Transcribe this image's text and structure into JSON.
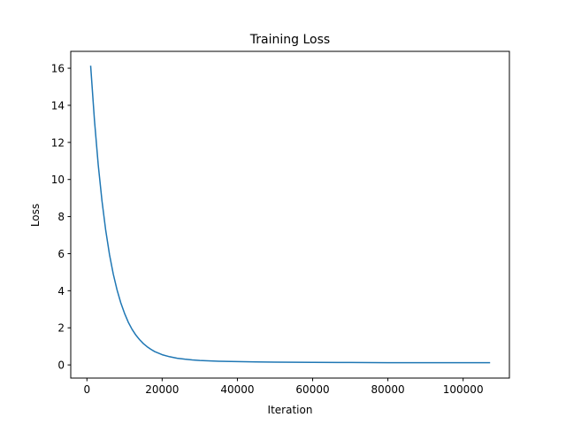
{
  "chart_data": {
    "type": "line",
    "title": "Training Loss",
    "xlabel": "Iteration",
    "ylabel": "Loss",
    "xlim": [
      -4300,
      112300
    ],
    "ylim": [
      -0.71,
      16.91
    ],
    "xticks": [
      0,
      20000,
      40000,
      60000,
      80000,
      100000
    ],
    "yticks": [
      0,
      2,
      4,
      6,
      8,
      10,
      12,
      14,
      16
    ],
    "grid": false,
    "legend": false,
    "series": [
      {
        "color": "#1f77b4",
        "x": [
          1000,
          2000,
          3000,
          4000,
          5000,
          6000,
          7000,
          8000,
          9000,
          10000,
          11000,
          12000,
          13000,
          14000,
          15000,
          16000,
          17000,
          18000,
          20000,
          22000,
          24000,
          26000,
          28000,
          30000,
          35000,
          40000,
          45000,
          50000,
          60000,
          70000,
          80000,
          90000,
          100000,
          107000
        ],
        "y": [
          16.1,
          13.2,
          10.8,
          8.85,
          7.25,
          5.95,
          4.9,
          4.05,
          3.35,
          2.78,
          2.3,
          1.92,
          1.61,
          1.36,
          1.15,
          0.98,
          0.84,
          0.72,
          0.55,
          0.44,
          0.36,
          0.31,
          0.27,
          0.24,
          0.2,
          0.18,
          0.16,
          0.15,
          0.14,
          0.13,
          0.12,
          0.12,
          0.12,
          0.12
        ]
      }
    ]
  }
}
